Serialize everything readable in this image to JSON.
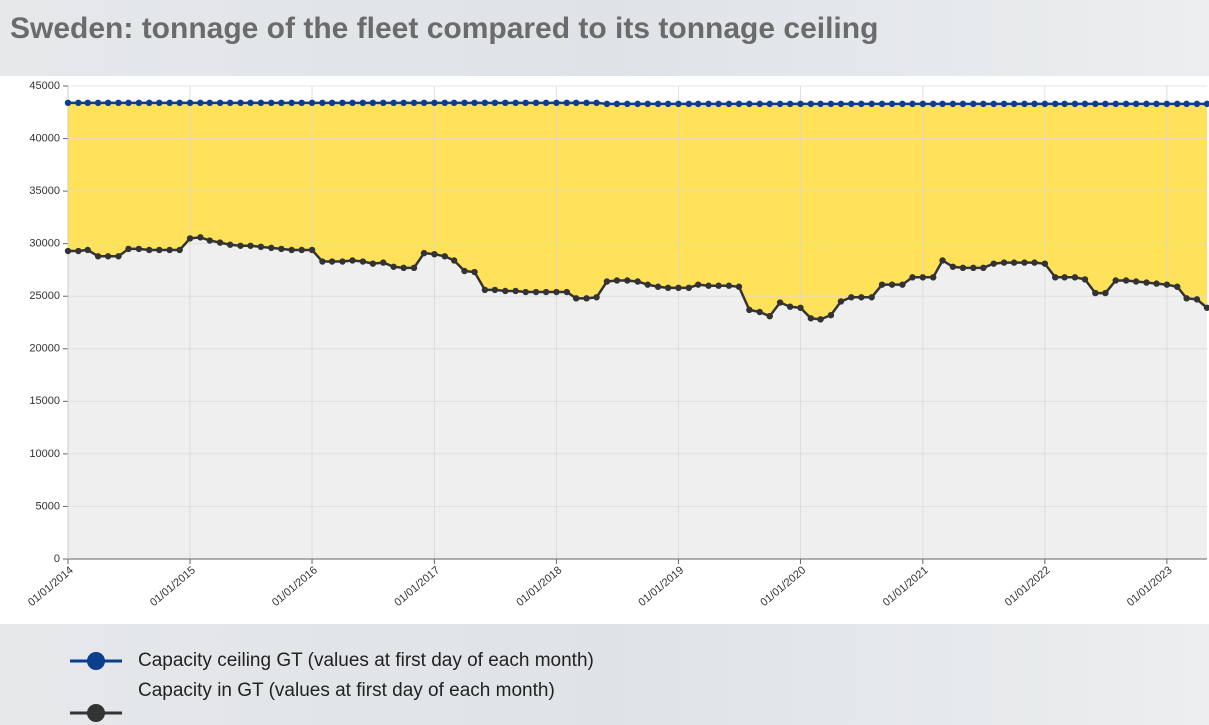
{
  "chart_data": {
    "type": "line",
    "title": "Sweden: tonnage of the fleet compared to its tonnage ceiling",
    "x": [
      "01/01/2014",
      "01/02/2014",
      "01/03/2014",
      "01/04/2014",
      "01/05/2014",
      "01/06/2014",
      "01/07/2014",
      "01/08/2014",
      "01/09/2014",
      "01/10/2014",
      "01/11/2014",
      "01/12/2014",
      "01/01/2015",
      "01/02/2015",
      "01/03/2015",
      "01/04/2015",
      "01/05/2015",
      "01/06/2015",
      "01/07/2015",
      "01/08/2015",
      "01/09/2015",
      "01/10/2015",
      "01/11/2015",
      "01/12/2015",
      "01/01/2016",
      "01/02/2016",
      "01/03/2016",
      "01/04/2016",
      "01/05/2016",
      "01/06/2016",
      "01/07/2016",
      "01/08/2016",
      "01/09/2016",
      "01/10/2016",
      "01/11/2016",
      "01/12/2016",
      "01/01/2017",
      "01/02/2017",
      "01/03/2017",
      "01/04/2017",
      "01/05/2017",
      "01/06/2017",
      "01/07/2017",
      "01/08/2017",
      "01/09/2017",
      "01/10/2017",
      "01/11/2017",
      "01/12/2017",
      "01/01/2018",
      "01/02/2018",
      "01/03/2018",
      "01/04/2018",
      "01/05/2018",
      "01/06/2018",
      "01/07/2018",
      "01/08/2018",
      "01/09/2018",
      "01/10/2018",
      "01/11/2018",
      "01/12/2018",
      "01/01/2019",
      "01/02/2019",
      "01/03/2019",
      "01/04/2019",
      "01/05/2019",
      "01/06/2019",
      "01/07/2019",
      "01/08/2019",
      "01/09/2019",
      "01/10/2019",
      "01/11/2019",
      "01/12/2019",
      "01/01/2020",
      "01/02/2020",
      "01/03/2020",
      "01/04/2020",
      "01/05/2020",
      "01/06/2020",
      "01/07/2020",
      "01/08/2020",
      "01/09/2020",
      "01/10/2020",
      "01/11/2020",
      "01/12/2020",
      "01/01/2021",
      "01/02/2021",
      "01/03/2021",
      "01/04/2021",
      "01/05/2021",
      "01/06/2021",
      "01/07/2021",
      "01/08/2021",
      "01/09/2021",
      "01/10/2021",
      "01/11/2021",
      "01/12/2021",
      "01/01/2022",
      "01/02/2022",
      "01/03/2022",
      "01/04/2022",
      "01/05/2022",
      "01/06/2022",
      "01/07/2022",
      "01/08/2022",
      "01/09/2022",
      "01/10/2022",
      "01/11/2022",
      "01/12/2022",
      "01/01/2023",
      "01/02/2023",
      "01/03/2023",
      "01/04/2023",
      "01/05/2023"
    ],
    "series": [
      {
        "name": "Capacity ceiling GT (values at first day of each month)",
        "color": "#0b3e8c",
        "values": [
          43400,
          43400,
          43400,
          43400,
          43400,
          43400,
          43400,
          43400,
          43400,
          43400,
          43400,
          43400,
          43400,
          43400,
          43400,
          43400,
          43400,
          43400,
          43400,
          43400,
          43400,
          43400,
          43400,
          43400,
          43400,
          43400,
          43400,
          43400,
          43400,
          43400,
          43400,
          43400,
          43400,
          43400,
          43400,
          43400,
          43400,
          43400,
          43400,
          43400,
          43400,
          43400,
          43400,
          43400,
          43400,
          43400,
          43400,
          43400,
          43400,
          43400,
          43400,
          43400,
          43400,
          43300,
          43300,
          43300,
          43300,
          43300,
          43300,
          43300,
          43300,
          43300,
          43300,
          43300,
          43300,
          43300,
          43300,
          43300,
          43300,
          43300,
          43300,
          43300,
          43300,
          43300,
          43300,
          43300,
          43300,
          43300,
          43300,
          43300,
          43300,
          43300,
          43300,
          43300,
          43300,
          43300,
          43300,
          43300,
          43300,
          43300,
          43300,
          43300,
          43300,
          43300,
          43300,
          43300,
          43300,
          43300,
          43300,
          43300,
          43300,
          43300,
          43300,
          43300,
          43300,
          43300,
          43300,
          43300,
          43300,
          43300,
          43300,
          43300,
          43300
        ]
      },
      {
        "name": "Capacity in GT (values at first day of each month)",
        "color": "#333333",
        "values": [
          29300,
          29300,
          29400,
          28800,
          28800,
          28800,
          29500,
          29500,
          29400,
          29400,
          29400,
          29400,
          30500,
          30600,
          30300,
          30100,
          29900,
          29800,
          29800,
          29700,
          29600,
          29500,
          29400,
          29400,
          29400,
          28300,
          28300,
          28300,
          28400,
          28300,
          28100,
          28200,
          27800,
          27700,
          27700,
          29100,
          29000,
          28800,
          28400,
          27400,
          27300,
          25600,
          25600,
          25500,
          25500,
          25400,
          25400,
          25400,
          25400,
          25400,
          24800,
          24800,
          24900,
          26400,
          26500,
          26500,
          26400,
          26100,
          25900,
          25800,
          25800,
          25800,
          26100,
          26000,
          26000,
          26000,
          25900,
          23700,
          23500,
          23100,
          24400,
          24000,
          23900,
          22900,
          22800,
          23200,
          24500,
          24900,
          24900,
          24900,
          26100,
          26100,
          26100,
          26800,
          26800,
          26800,
          28400,
          27800,
          27700,
          27700,
          27700,
          28100,
          28200,
          28200,
          28200,
          28200,
          28100,
          26800,
          26800,
          26800,
          26600,
          25300,
          25300,
          26500,
          26500,
          26400,
          26300,
          26200,
          26100,
          25900,
          24800,
          24700,
          23900
        ]
      }
    ],
    "fill_between_color": "#ffe15a",
    "fill_below_color": "#efefef",
    "xlim": [
      "01/01/2014",
      "01/05/2023"
    ],
    "xticks": [
      "01/01/2014",
      "01/01/2015",
      "01/01/2016",
      "01/01/2017",
      "01/01/2018",
      "01/01/2019",
      "01/01/2020",
      "01/01/2021",
      "01/01/2022",
      "01/01/2023"
    ],
    "ylim": [
      0,
      45000
    ],
    "yticks": [
      0,
      5000,
      10000,
      15000,
      20000,
      25000,
      30000,
      35000,
      40000,
      45000
    ],
    "grid": true
  }
}
